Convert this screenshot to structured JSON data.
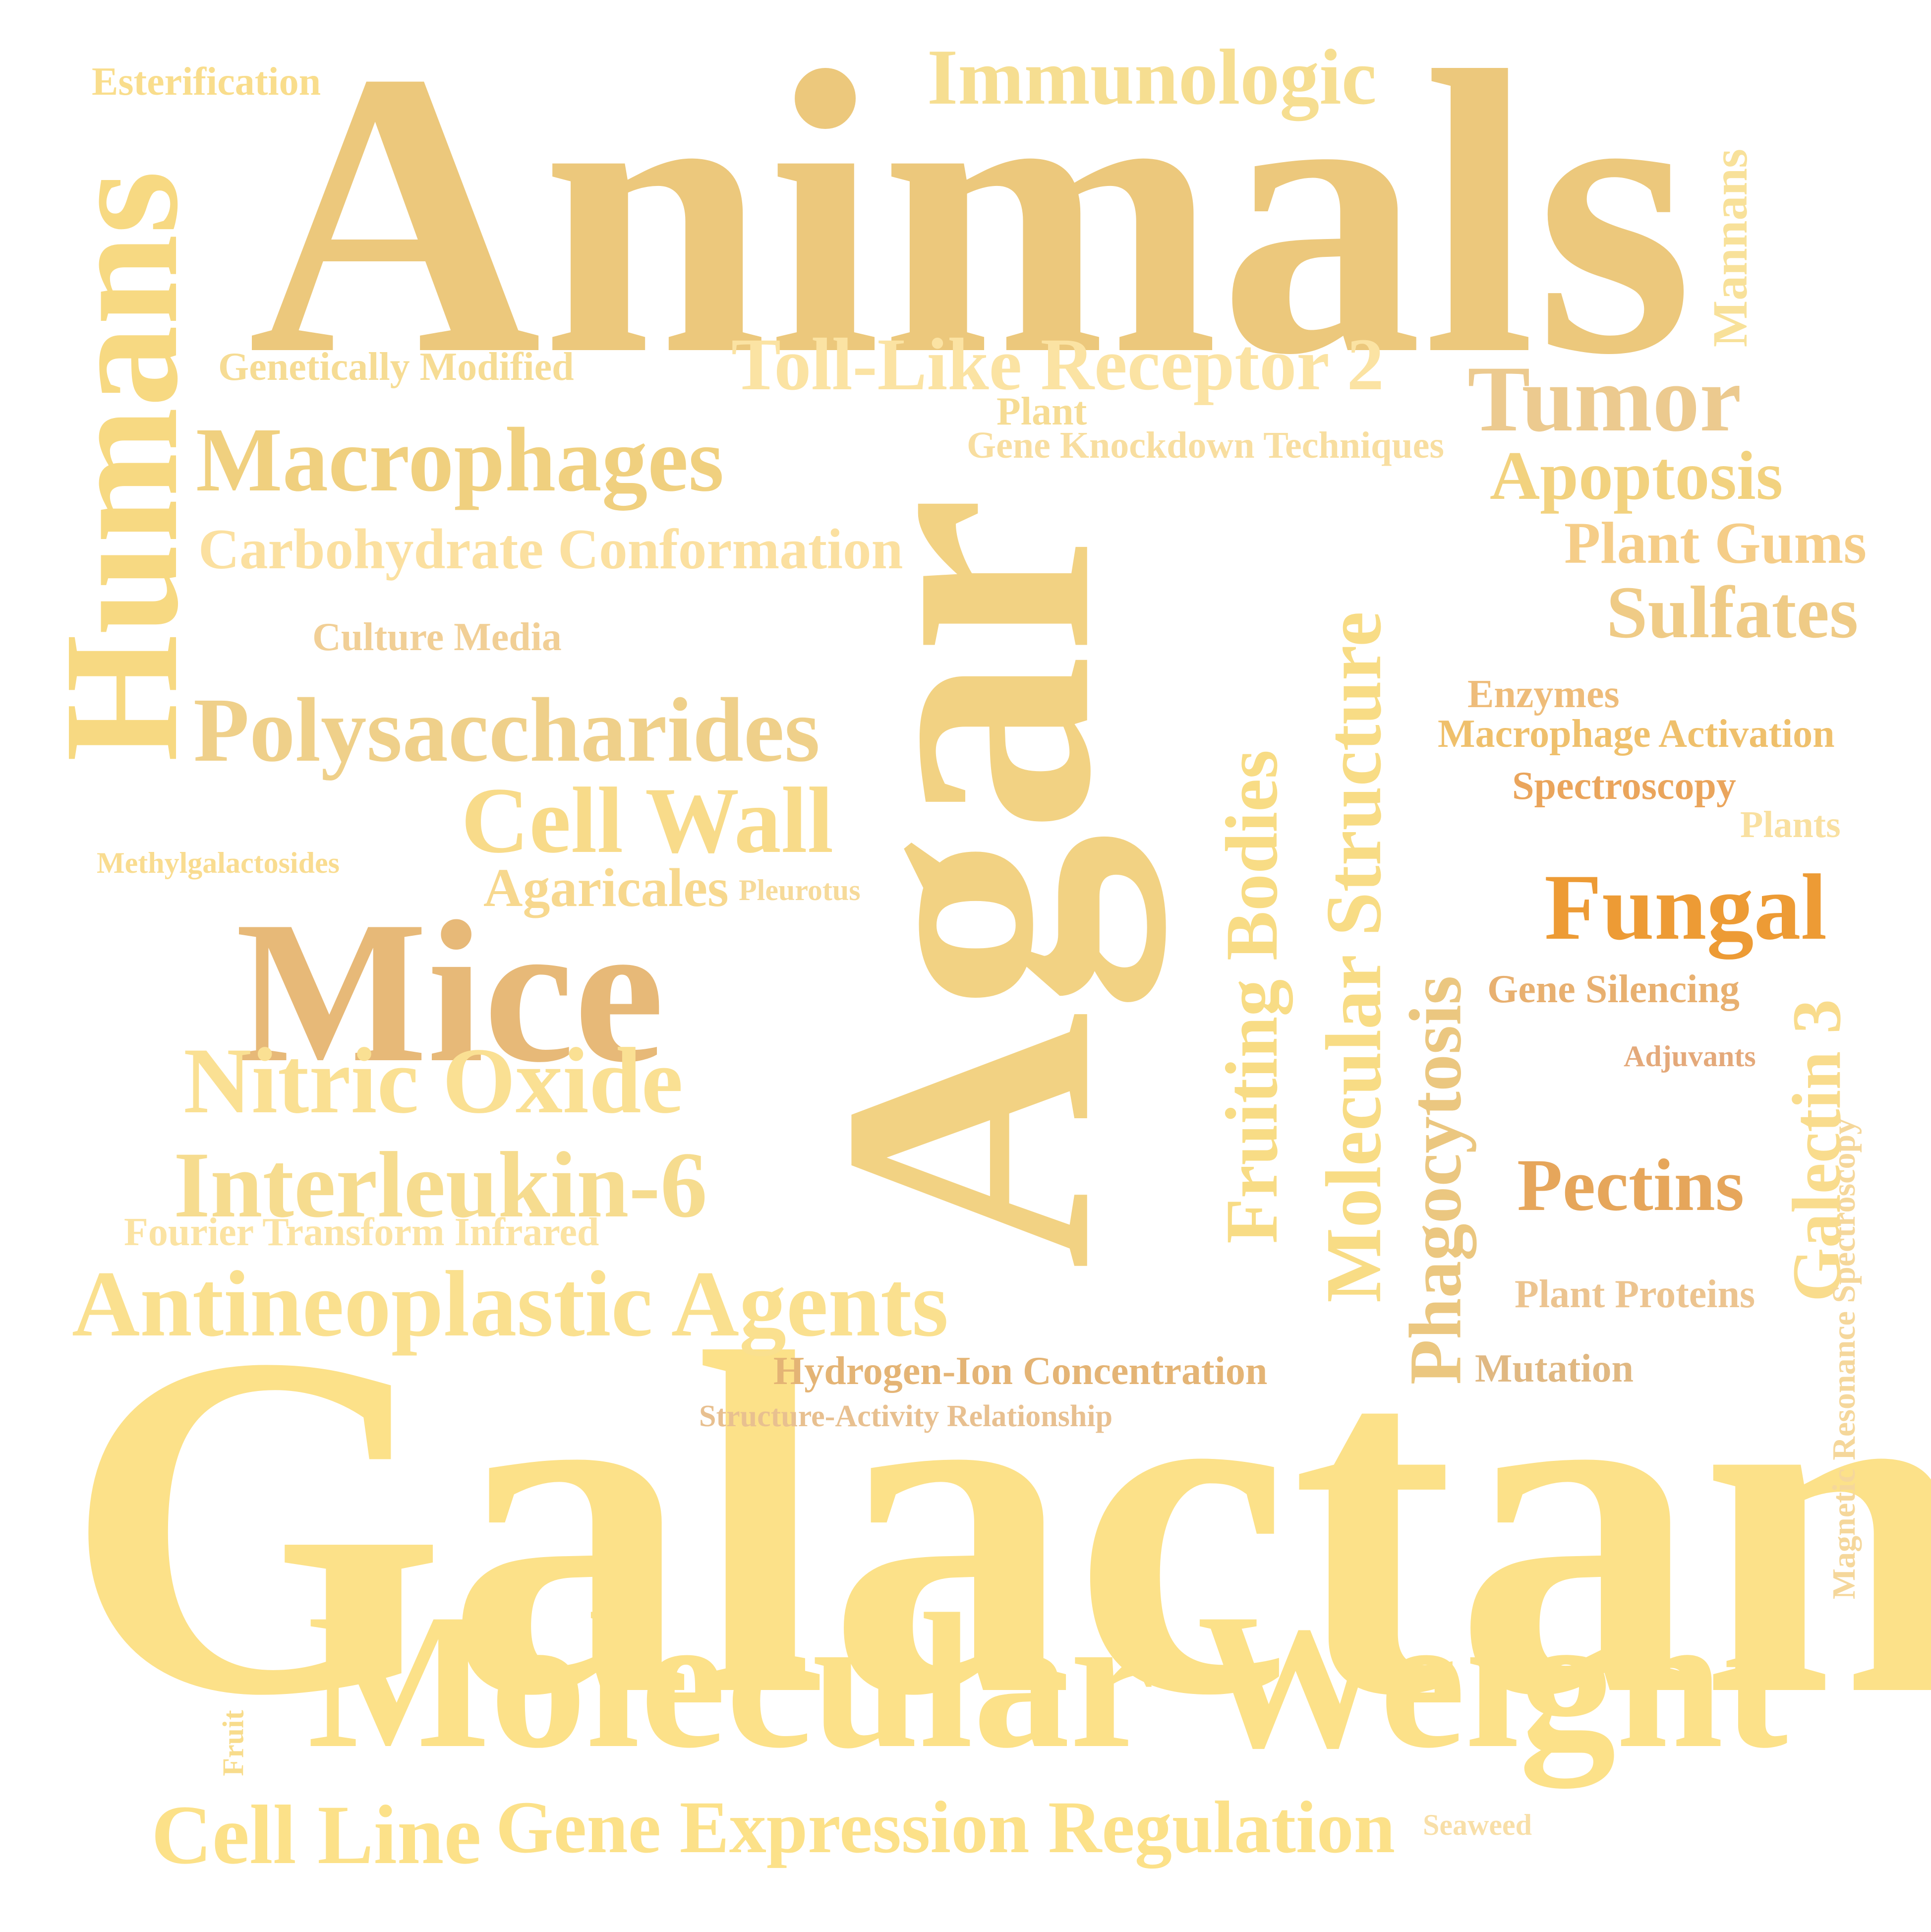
{
  "words": {
    "animals": {
      "text": "Animals",
      "color": "#ecc87c"
    },
    "galactans": {
      "text": "Galactans",
      "color": "#fce189"
    },
    "agar": {
      "text": "Agar",
      "color": "#f2d283"
    },
    "humans": {
      "text": "Humans",
      "color": "#f7d982"
    },
    "molecular_weight": {
      "text": "Molecular Weight",
      "color": "#fce189"
    },
    "mice": {
      "text": "Mice",
      "color": "#e7b978"
    },
    "immunologic": {
      "text": "Immunologic",
      "color": "#f6de91"
    },
    "esterification": {
      "text": "Esterification",
      "color": "#f9dd8c"
    },
    "mannans": {
      "text": "Mannans",
      "color": "#f8e19a"
    },
    "genetically_modified": {
      "text": "Genetically Modified",
      "color": "#f6dc94"
    },
    "toll_like_receptor_2": {
      "text": "Toll-Like Receptor 2",
      "color": "#fbe3a3"
    },
    "tumor": {
      "text": "Tumor",
      "color": "#ecca8f"
    },
    "plant": {
      "text": "Plant",
      "color": "#f6dc94"
    },
    "gene_knockdown": {
      "text": "Gene Knockdown Techniques",
      "color": "#f8dea0"
    },
    "macrophages": {
      "text": "Macrophages",
      "color": "#f0d07f"
    },
    "apoptosis": {
      "text": "Apoptosis",
      "color": "#f2d27f"
    },
    "carbohydrate_conformation": {
      "text": "Carbohydrate Conformation",
      "color": "#fbe0a0"
    },
    "plant_gums": {
      "text": "Plant Gums",
      "color": "#f5cd88"
    },
    "sulfates": {
      "text": "Sulfates",
      "color": "#efcb86"
    },
    "culture_media": {
      "text": "Culture Media",
      "color": "#f1cf96"
    },
    "molecular_structure": {
      "text": "Molecular Structure",
      "color": "#f8dc85"
    },
    "fruiting_bodies": {
      "text": "Fruiting Bodies",
      "color": "#f8dc85"
    },
    "enzymes": {
      "text": "Enzymes",
      "color": "#eebc7a"
    },
    "macrophage_activation": {
      "text": "Macrophage Activation",
      "color": "#efc06c"
    },
    "polysaccharides": {
      "text": "Polysaccharides",
      "color": "#efd08a"
    },
    "spectroscopy": {
      "text": "Spectroscopy",
      "color": "#eaa55c"
    },
    "plants": {
      "text": "Plants",
      "color": "#f9e0a0"
    },
    "cell_wall": {
      "text": "Cell Wall",
      "color": "#f8db8a"
    },
    "methylgalactosides": {
      "text": "Methylgalactosides",
      "color": "#f9dc90"
    },
    "agaricales": {
      "text": "Agaricales",
      "color": "#f7d88e"
    },
    "pleurotus": {
      "text": "Pleurotus",
      "color": "#f6da9a"
    },
    "fungal": {
      "text": "Fungal",
      "color": "#ed9b35"
    },
    "phagocytosis": {
      "text": "Phagocytosis",
      "color": "#ebc780"
    },
    "gene_silencing": {
      "text": "Gene Silencing",
      "color": "#e8b070"
    },
    "galectin_3": {
      "text": "Galectin 3",
      "color": "#f9dc8d"
    },
    "adjuvants": {
      "text": "Adjuvants",
      "color": "#e4a97a"
    },
    "nmr_spectroscopy": {
      "text": "Magnetic Resonance Spectroscopy",
      "color": "#f5d79b"
    },
    "nitric_oxide": {
      "text": "Nitric Oxide",
      "color": "#fae093"
    },
    "interleukin_6": {
      "text": "Interleukin-6",
      "color": "#f6dc8f"
    },
    "pectins": {
      "text": "Pectins",
      "color": "#e6a65b"
    },
    "fourier": {
      "text": "Fourier Transform Infrared",
      "color": "#fbe3a3"
    },
    "antineoplastic": {
      "text": "Antineoplastic Agents",
      "color": "#fae08f"
    },
    "plant_proteins": {
      "text": "Plant Proteins",
      "color": "#ecc490"
    },
    "hydrogen_ion": {
      "text": "Hydrogen-Ion Concentration",
      "color": "#e4b475"
    },
    "mutation": {
      "text": "Mutation",
      "color": "#e0b882"
    },
    "structure_activity": {
      "text": "Structure-Activity Relationship",
      "color": "#e8c090"
    },
    "fruit": {
      "text": "Fruit",
      "color": "#f8dc8c"
    },
    "cell_line": {
      "text": "Cell Line",
      "color": "#fce189"
    },
    "gene_expression": {
      "text": "Gene Expression Regulation",
      "color": "#fce189"
    },
    "seaweed": {
      "text": "Seaweed",
      "color": "#f8dfa8"
    }
  }
}
